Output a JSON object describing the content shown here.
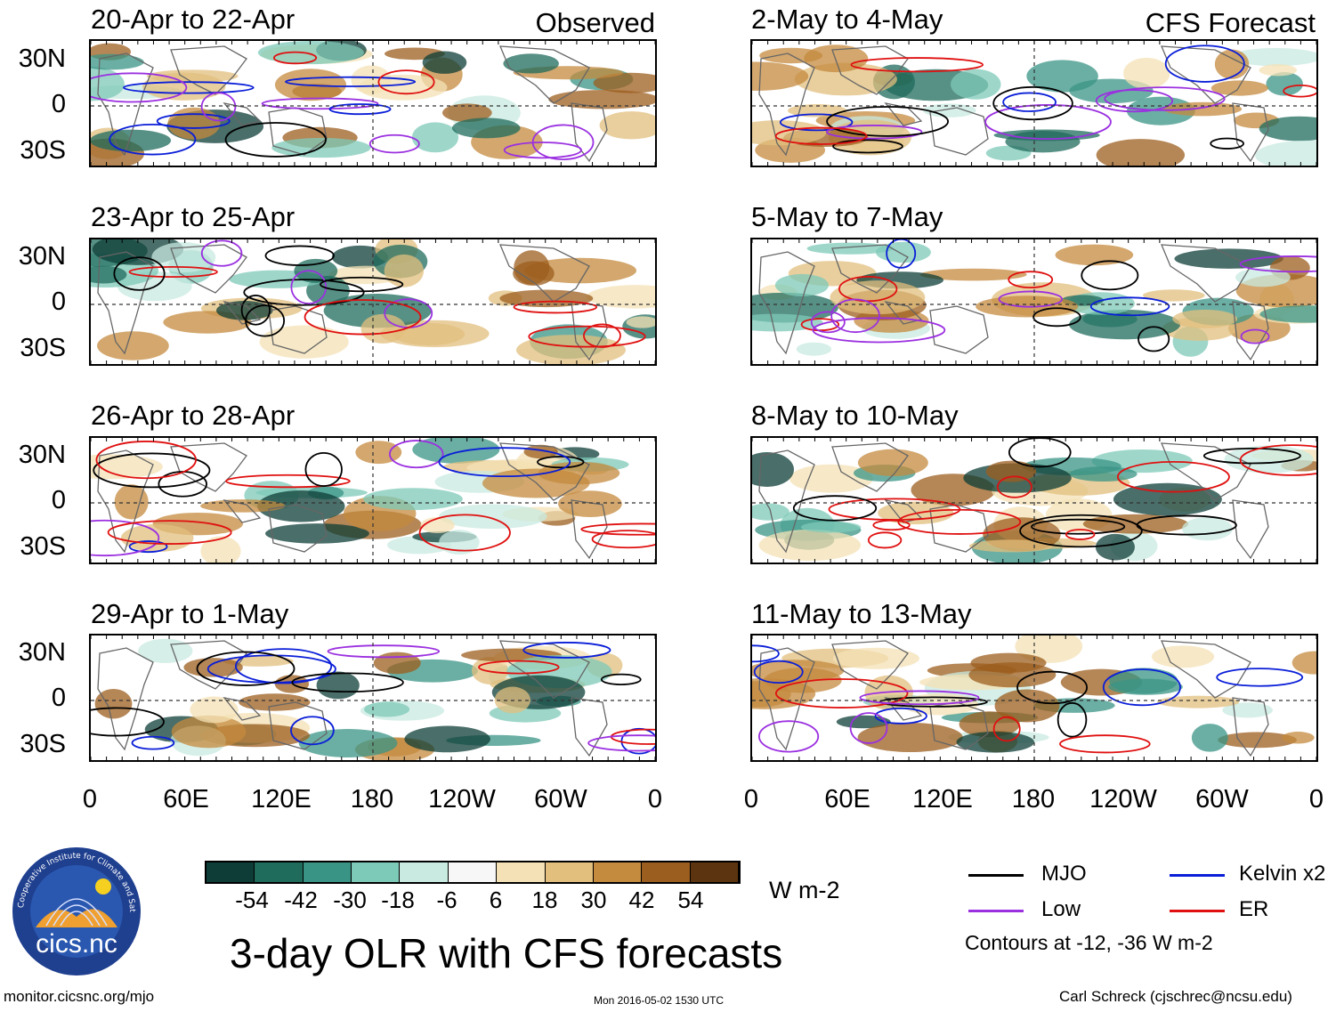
{
  "columns": {
    "left_label": "Observed",
    "right_label": "CFS Forecast"
  },
  "panels": {
    "left": [
      {
        "title": "20-Apr to 22-Apr"
      },
      {
        "title": "23-Apr to 25-Apr"
      },
      {
        "title": "26-Apr to 28-Apr"
      },
      {
        "title": "29-Apr to 1-May"
      }
    ],
    "right": [
      {
        "title": "2-May to 4-May"
      },
      {
        "title": "5-May to 7-May"
      },
      {
        "title": "8-May to 10-May"
      },
      {
        "title": "11-May to 13-May"
      }
    ]
  },
  "axes": {
    "lat_labels": [
      "30N",
      "0",
      "30S"
    ],
    "lon_labels": [
      "0",
      "60E",
      "120E",
      "180",
      "120W",
      "60W",
      "0"
    ]
  },
  "colorbar": {
    "labels": [
      "-54",
      "-42",
      "-30",
      "-18",
      "-6",
      "6",
      "18",
      "30",
      "42",
      "54"
    ],
    "colors": [
      "#0e3d37",
      "#1f6b5c",
      "#3a9485",
      "#7ecab8",
      "#c8eae0",
      "#f7f7f7",
      "#f4e1b5",
      "#e2bf7d",
      "#c48a3e",
      "#9c5e1e",
      "#5c3410"
    ],
    "unit": "W m-2"
  },
  "legend": {
    "items": [
      {
        "label": "MJO",
        "color": "#000000"
      },
      {
        "label": "Kelvin x2",
        "color": "#0a1ed8"
      },
      {
        "label": "Low",
        "color": "#9b30e0"
      },
      {
        "label": "ER",
        "color": "#e01010"
      }
    ],
    "note": "Contours at -12, -36 W m-2"
  },
  "title": "3-day OLR with CFS forecasts",
  "logo_text": "cics.nc",
  "logo_ring_text": "Cooperative Institute for Climate and Satellites",
  "footer": {
    "website": "monitor.cicsnc.org/mjo",
    "timestamp": "Mon 2016-05-02 1530 UTC",
    "author": "Carl Schreck (cjschrec@ncsu.edu)"
  }
}
